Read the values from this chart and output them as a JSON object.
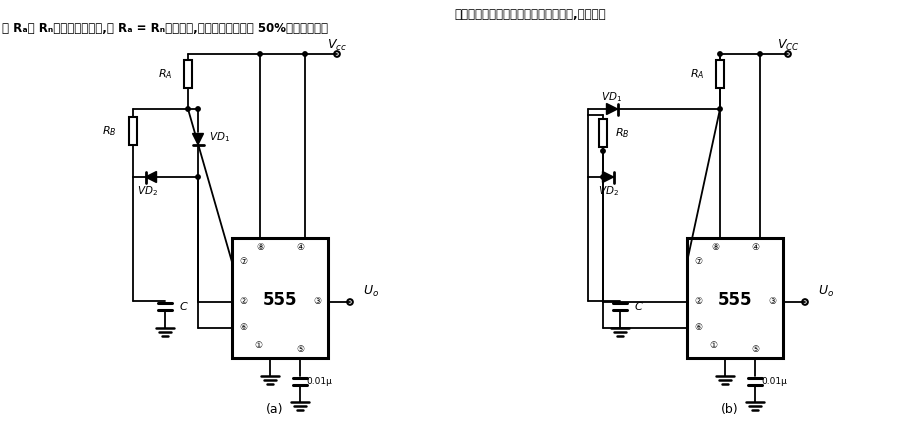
{
  "title_line1": "由于在电路中增设了充放电引导二极管,充放电电",
  "title_line2": "阻 Rₐ和 Rₙ可以单独的调节,在 Rₐ = Rₙ的条件下,可以获得占空比为 50%的方波输出。",
  "label_a": "(a)",
  "label_b": "(b)",
  "bg_color": "#ffffff",
  "line_color": "#000000"
}
